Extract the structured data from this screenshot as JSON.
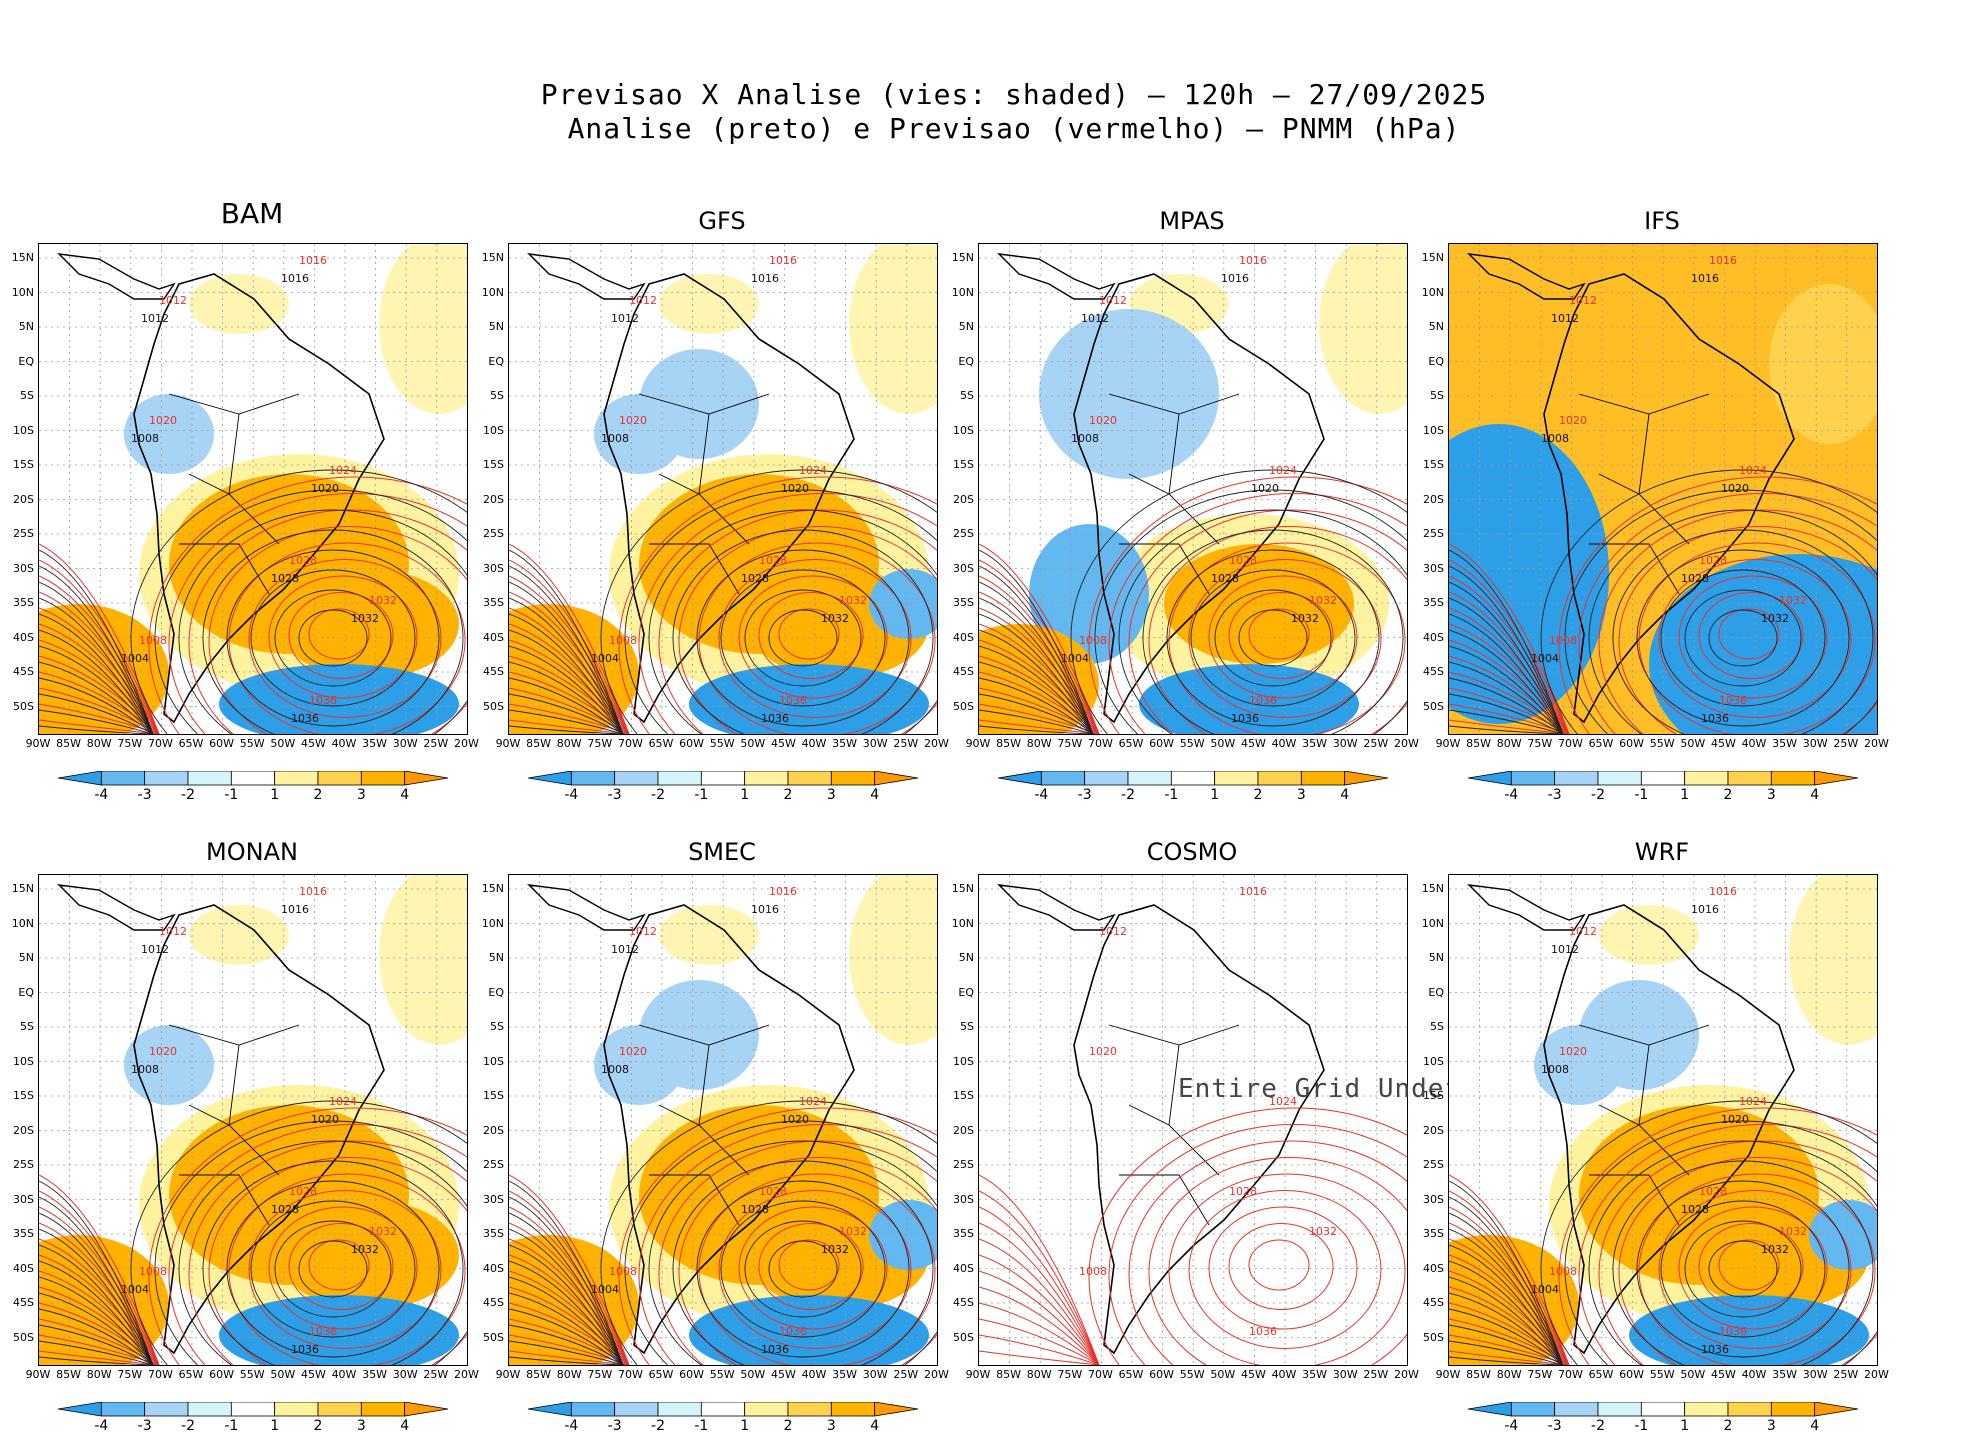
{
  "header": {
    "line1": "Previsao X Analise (vies: shaded) – 120h – 27/09/2025",
    "line2": "Analise (preto) e Previsao (vermelho) – PNMM (hPa)"
  },
  "axes": {
    "lat_labels": [
      "15N",
      "10N",
      "5N",
      "EQ",
      "5S",
      "10S",
      "15S",
      "20S",
      "25S",
      "30S",
      "35S",
      "40S",
      "45S",
      "50S"
    ],
    "lon_labels": [
      "90W",
      "85W",
      "80W",
      "75W",
      "70W",
      "65W",
      "60W",
      "55W",
      "50W",
      "45W",
      "40W",
      "35W",
      "30W",
      "25W",
      "20W"
    ]
  },
  "colorbar": {
    "ticks": [
      "-4",
      "-3",
      "-2",
      "-1",
      "1",
      "2",
      "3",
      "4"
    ],
    "colors": [
      "#2d9fe8",
      "#63b8f0",
      "#a7d3f5",
      "#d6f5fb",
      "#ffffff",
      "#fff3a0",
      "#ffd24d",
      "#ffb300",
      "#ff9900"
    ]
  },
  "panels": [
    {
      "name": "BAM",
      "style": "warm-south",
      "undefined": false
    },
    {
      "name": "GFS",
      "style": "mixed",
      "undefined": false
    },
    {
      "name": "MPAS",
      "style": "cool-north",
      "undefined": false
    },
    {
      "name": "IFS",
      "style": "strong",
      "undefined": false
    },
    {
      "name": "MONAN",
      "style": "warm-south",
      "undefined": false
    },
    {
      "name": "SMEC",
      "style": "mixed",
      "undefined": false
    },
    {
      "name": "COSMO",
      "style": "none",
      "undefined": true,
      "message": "Entire Grid Undef"
    },
    {
      "name": "WRF",
      "style": "mixed",
      "undefined": false
    }
  ],
  "contour_labels": {
    "black": [
      "1012",
      "1016",
      "1008",
      "1020",
      "1028",
      "1032",
      "1036",
      "1004"
    ],
    "red": [
      "1012",
      "1016",
      "1020",
      "1024",
      "1028",
      "1032",
      "1036",
      "1008"
    ]
  }
}
